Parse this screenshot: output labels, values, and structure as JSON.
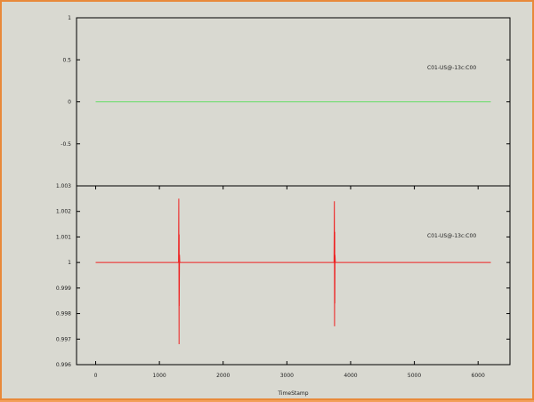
{
  "chart_data": [
    {
      "type": "line",
      "xlabel": "",
      "ylabel": "",
      "xlim": [
        -300,
        6500
      ],
      "ylim": [
        -1,
        1
      ],
      "y_ticks": [
        -1,
        -0.5,
        0,
        0.5,
        1
      ],
      "y_tick_labels": [
        "",
        "-0.5",
        "0",
        "0.5",
        "1"
      ],
      "grid": false,
      "legend_position": "top-right",
      "series": [
        {
          "name": "C01-US@-13c:C00",
          "color": "#66dd66",
          "x": [
            0,
            6200
          ],
          "y": [
            0,
            0
          ]
        }
      ]
    },
    {
      "type": "line",
      "xlabel": "TimeStamp",
      "ylabel": "",
      "xlim": [
        -300,
        6500
      ],
      "ylim": [
        0.996,
        1.003
      ],
      "y_ticks": [
        0.996,
        0.997,
        0.998,
        0.999,
        1,
        1.001,
        1.002,
        1.003
      ],
      "y_tick_labels": [
        "0.996",
        "0.997",
        "0.998",
        "0.999",
        "1",
        "1.001",
        "1.002",
        "1.003"
      ],
      "x_ticks": [
        0,
        1000,
        2000,
        3000,
        4000,
        5000,
        6000
      ],
      "x_tick_labels": [
        "0",
        "1000",
        "2000",
        "3000",
        "4000",
        "5000",
        "6000"
      ],
      "grid": false,
      "legend_position": "top-right",
      "series": [
        {
          "name": "C01-US@-13c:C00",
          "color": "#ee2222",
          "x": [
            0,
            1300,
            1305,
            1308,
            1310,
            1312,
            1315,
            1320,
            3740,
            3745,
            3748,
            3750,
            3752,
            3755,
            3760,
            6200
          ],
          "y": [
            1,
            1,
            1.0025,
            0.9968,
            1.0011,
            0.9983,
            1.0003,
            1,
            1,
            1.0024,
            0.9975,
            1.0012,
            0.9984,
            1.0003,
            1,
            1
          ]
        }
      ]
    }
  ]
}
